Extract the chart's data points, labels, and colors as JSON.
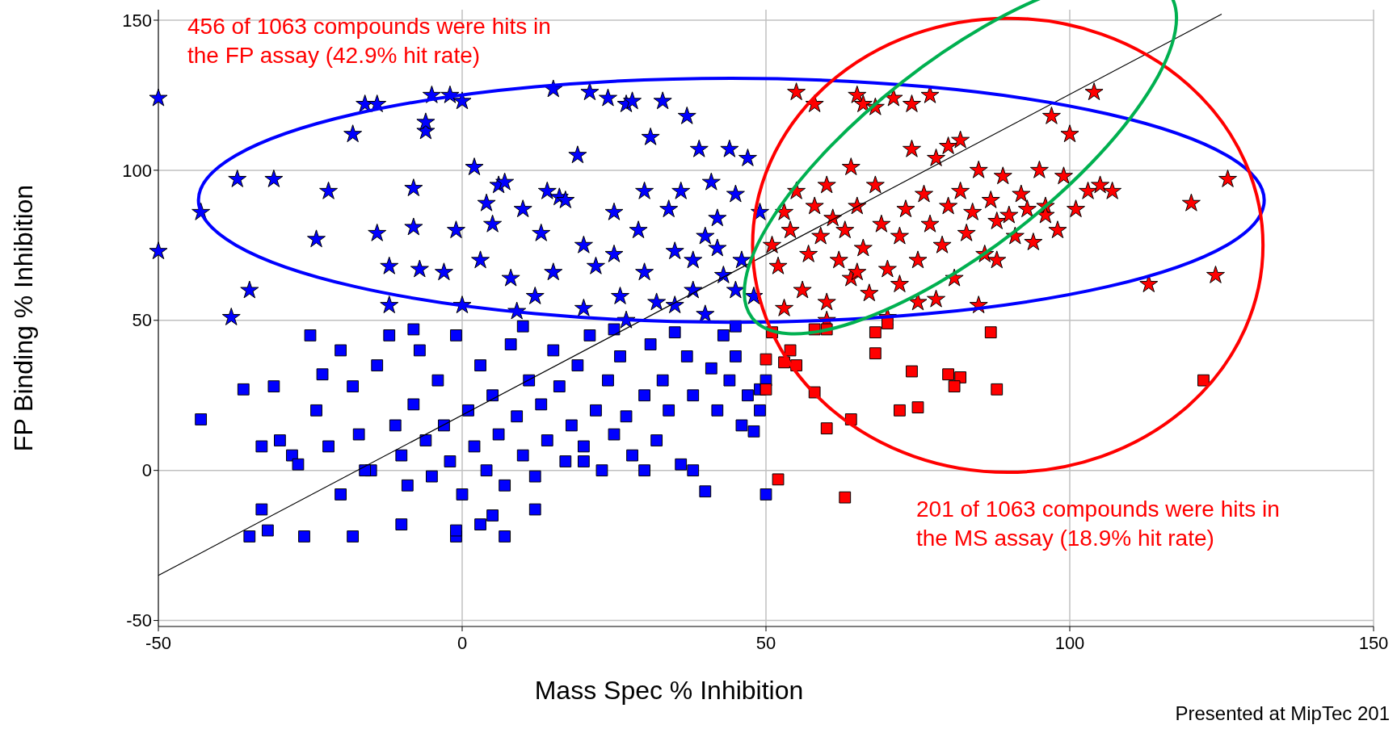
{
  "chart_data": {
    "type": "scatter",
    "xlabel": "Mass Spec % Inhibition",
    "ylabel": "FP Binding % Inhibition",
    "annotations": [
      "456 of 1063 compounds were hits in\nthe FP assay (42.9% hit rate)",
      "201 of 1063 compounds were hits in\nthe MS assay (18.9% hit rate)",
      "Presented at MipTec 201"
    ],
    "xlim": [
      -50,
      150
    ],
    "ylim": [
      -52,
      153.5
    ],
    "xticks": [
      -50,
      0,
      50,
      100,
      150
    ],
    "yticks": [
      -50,
      0,
      50,
      100,
      150
    ],
    "grid": true,
    "series": [
      {
        "marker": "square",
        "color": "#0000ff",
        "x": [
          -43,
          -36,
          -33,
          -31,
          -30,
          -28,
          -27,
          -25,
          -24,
          -22,
          -20,
          -18,
          -17,
          -15,
          -14,
          -12,
          -11,
          -10,
          -9,
          -8,
          -7,
          -6,
          -5,
          -4,
          -3,
          -2,
          -1,
          0,
          1,
          2,
          3,
          4,
          5,
          6,
          7,
          8,
          9,
          10,
          11,
          12,
          13,
          14,
          15,
          16,
          17,
          18,
          19,
          20,
          21,
          22,
          23,
          24,
          25,
          26,
          27,
          28,
          30,
          31,
          32,
          33,
          34,
          35,
          36,
          37,
          38,
          40,
          41,
          42,
          43,
          44,
          45,
          46,
          47,
          48,
          49,
          50,
          -26,
          -32,
          -35,
          -33,
          -18,
          -1,
          -1,
          3,
          7,
          -10,
          12,
          5,
          20,
          30,
          38,
          49,
          50,
          -23,
          -20,
          -16,
          -8,
          10,
          25,
          45
        ],
        "values": [
          17,
          27,
          8,
          28,
          10,
          5,
          2,
          45,
          20,
          8,
          -8,
          28,
          12,
          0,
          35,
          45,
          15,
          5,
          -5,
          22,
          40,
          10,
          -2,
          30,
          15,
          3,
          45,
          -8,
          20,
          8,
          35,
          0,
          25,
          12,
          -5,
          42,
          18,
          5,
          30,
          -2,
          22,
          10,
          40,
          28,
          3,
          15,
          35,
          8,
          45,
          20,
          0,
          30,
          12,
          38,
          18,
          5,
          25,
          42,
          10,
          30,
          20,
          46,
          2,
          38,
          25,
          -7,
          34,
          20,
          45,
          30,
          38,
          15,
          25,
          13,
          20,
          -8,
          -22,
          -20,
          -22,
          -13,
          -22,
          -22,
          -20,
          -18,
          -22,
          -18,
          -13,
          -15,
          3,
          0,
          0,
          27,
          30,
          32,
          40,
          0,
          47,
          48,
          47,
          48
        ]
      },
      {
        "marker": "star",
        "color": "#0000ff",
        "x": [
          -50,
          -50,
          -43,
          -37,
          -35,
          -38,
          -31,
          -24,
          -22,
          -18,
          -16,
          -14,
          -14,
          -12,
          -12,
          -8,
          -8,
          -7,
          -6,
          -6,
          -5,
          -3,
          -2,
          -1,
          0,
          0,
          2,
          3,
          4,
          5,
          6,
          7,
          8,
          9,
          10,
          12,
          13,
          14,
          15,
          16,
          17,
          19,
          20,
          21,
          22,
          24,
          25,
          26,
          27,
          28,
          29,
          30,
          31,
          32,
          33,
          34,
          35,
          36,
          37,
          38,
          39,
          40,
          41,
          42,
          43,
          44,
          45,
          46,
          47,
          48,
          49,
          30,
          35,
          40,
          45,
          20,
          15,
          25,
          38,
          42,
          27
        ],
        "values": [
          124,
          73,
          86,
          97,
          60,
          51,
          97,
          77,
          93,
          112,
          122,
          122,
          79,
          68,
          55,
          81,
          94,
          67,
          113,
          116,
          125,
          66,
          125,
          80,
          123,
          55,
          101,
          70,
          89,
          82,
          95,
          96,
          64,
          53,
          87,
          58,
          79,
          93,
          127,
          91,
          90,
          105,
          75,
          126,
          68,
          124,
          86,
          58,
          122,
          123,
          80,
          93,
          111,
          56,
          123,
          87,
          73,
          93,
          118,
          60,
          107,
          78,
          96,
          84,
          65,
          107,
          92,
          70,
          104,
          58,
          86,
          66,
          55,
          52,
          60,
          54,
          66,
          72,
          70,
          74,
          50
        ]
      },
      {
        "marker": "star",
        "color": "#ff0000",
        "x": [
          51,
          52,
          53,
          54,
          55,
          55,
          56,
          57,
          58,
          58,
          59,
          60,
          60,
          61,
          62,
          63,
          64,
          64,
          65,
          65,
          66,
          66,
          67,
          68,
          68,
          69,
          70,
          70,
          71,
          72,
          73,
          74,
          74,
          75,
          75,
          76,
          77,
          77,
          78,
          79,
          80,
          80,
          81,
          82,
          82,
          83,
          84,
          85,
          86,
          87,
          88,
          88,
          89,
          90,
          91,
          92,
          93,
          94,
          95,
          96,
          97,
          98,
          99,
          100,
          101,
          103,
          104,
          105,
          107,
          113,
          120,
          124,
          126,
          96,
          60,
          53,
          85,
          72,
          65,
          78
        ],
        "values": [
          75,
          68,
          86,
          80,
          126,
          93,
          60,
          72,
          122,
          88,
          78,
          95,
          56,
          84,
          70,
          80,
          101,
          64,
          125,
          88,
          122,
          74,
          59,
          121,
          95,
          82,
          67,
          51,
          124,
          78,
          87,
          122,
          107,
          70,
          56,
          92,
          125,
          82,
          104,
          75,
          88,
          108,
          64,
          93,
          110,
          79,
          86,
          100,
          72,
          90,
          83,
          70,
          98,
          85,
          78,
          92,
          87,
          76,
          100,
          88,
          118,
          80,
          98,
          112,
          87,
          93,
          126,
          95,
          93,
          62,
          89,
          65,
          97,
          85,
          50,
          54,
          55,
          62,
          66,
          57
        ]
      },
      {
        "marker": "square",
        "color": "#ff0000",
        "x": [
          51,
          52,
          50,
          50,
          53,
          54,
          55,
          58,
          60,
          58,
          60,
          63,
          64,
          68,
          68,
          74,
          72,
          75,
          80,
          82,
          81,
          87,
          88,
          122,
          70
        ],
        "values": [
          46,
          -3,
          27,
          37,
          36,
          40,
          35,
          26,
          14,
          47,
          47,
          -9,
          17,
          46,
          39,
          33,
          20,
          21,
          32,
          31,
          28,
          46,
          27,
          30,
          49
        ]
      },
      {
        "type": "line",
        "color": "#000000",
        "x": [
          -50,
          125
        ],
        "values": [
          -35,
          152
        ]
      }
    ]
  }
}
